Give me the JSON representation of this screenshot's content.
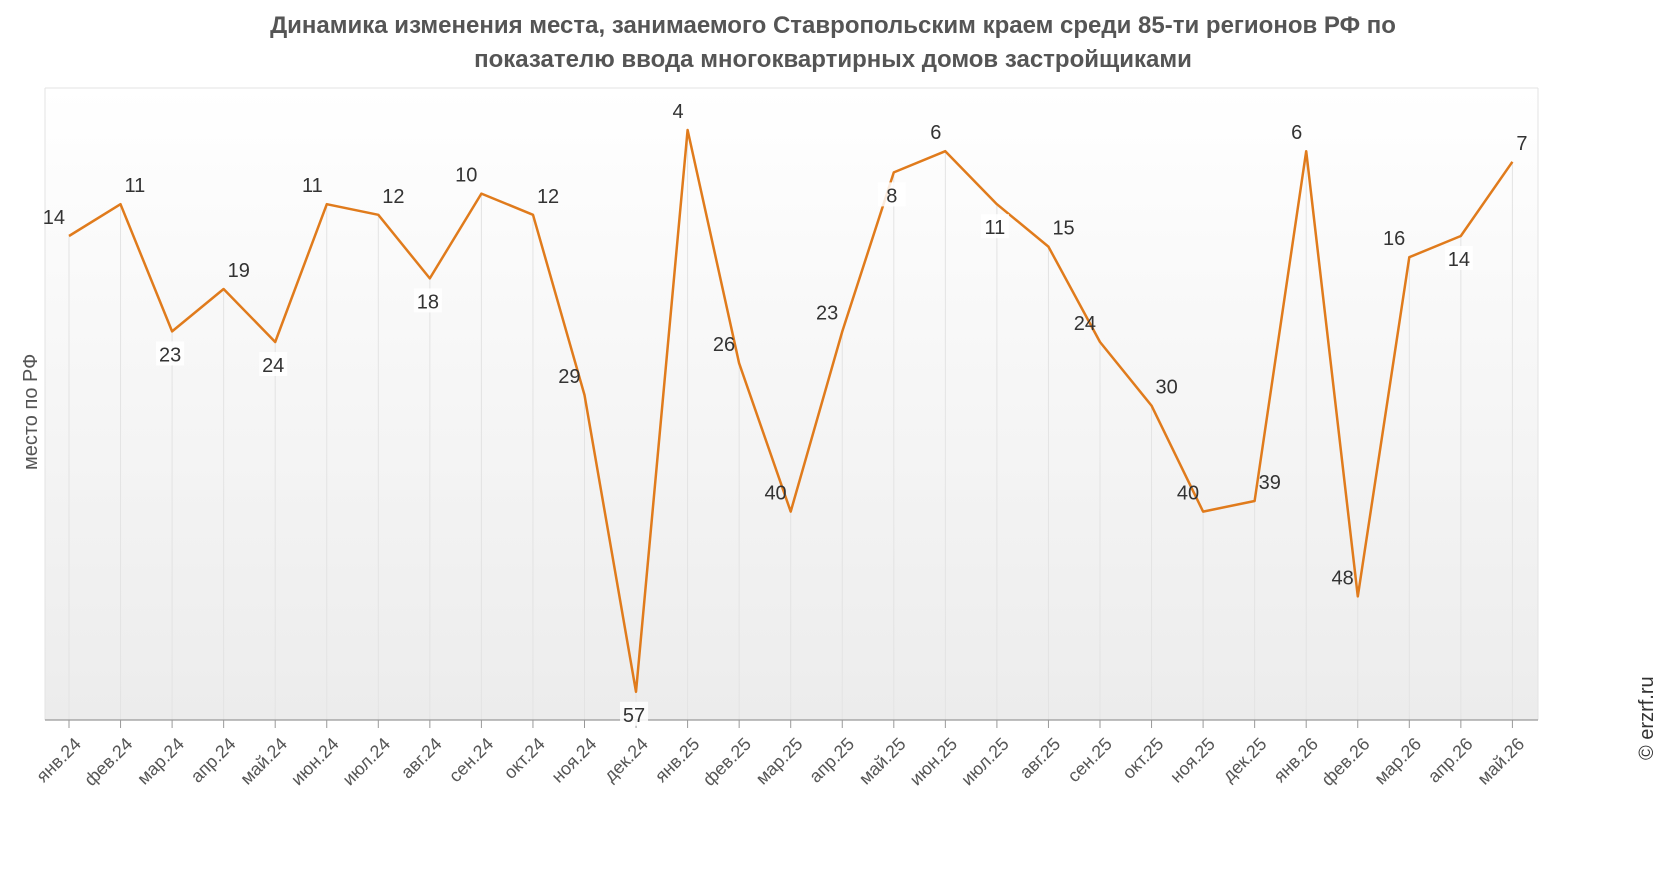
{
  "chart_data": {
    "type": "line",
    "title": "Динамика изменения места, занимаемого Ставропольским краем среди 85-ти регионов РФ по показателю ввода многоквартирных домов застройщиками",
    "title_lines": [
      "Динамика изменения места, занимаемого Ставропольским краем среди 85-ти регионов РФ по",
      "показателю ввода многоквартирных домов застройщиками"
    ],
    "xlabel": "",
    "ylabel": "место по РФ",
    "y_inverted": true,
    "grid": "vertical",
    "categories": [
      "янв.24",
      "фев.24",
      "мар.24",
      "апр.24",
      "май.24",
      "июн.24",
      "июл.24",
      "авг.24",
      "сен.24",
      "окт.24",
      "ноя.24",
      "дек.24",
      "янв.25",
      "фев.25",
      "мар.25",
      "апр.25",
      "май.25",
      "июн.25",
      "июл.25",
      "авг.25",
      "сен.25",
      "окт.25",
      "ноя.25",
      "дек.25",
      "янв.26",
      "фев.26",
      "мар.26",
      "апр.26",
      "май.26"
    ],
    "series": [
      {
        "name": "",
        "color": "#e07b1c",
        "values": [
          14,
          11,
          23,
          19,
          24,
          11,
          12,
          18,
          10,
          12,
          29,
          57,
          4,
          26,
          40,
          23,
          8,
          6,
          11,
          15,
          24,
          30,
          40,
          39,
          6,
          48,
          16,
          14,
          7
        ]
      }
    ],
    "data_label_positions": [
      "left",
      "right",
      "below",
      "right",
      "below",
      "left",
      "right",
      "below",
      "left",
      "right",
      "left",
      "below",
      "left",
      "left",
      "left",
      "left",
      "below",
      "left",
      "below",
      "right",
      "left",
      "right",
      "left",
      "right",
      "left",
      "left",
      "left",
      "below",
      "right"
    ]
  },
  "watermark": "© erzrf.ru",
  "colors": {
    "line": "#e07b1c",
    "grid": "#e3e3e3",
    "text": "#555555",
    "label": "#333333"
  }
}
